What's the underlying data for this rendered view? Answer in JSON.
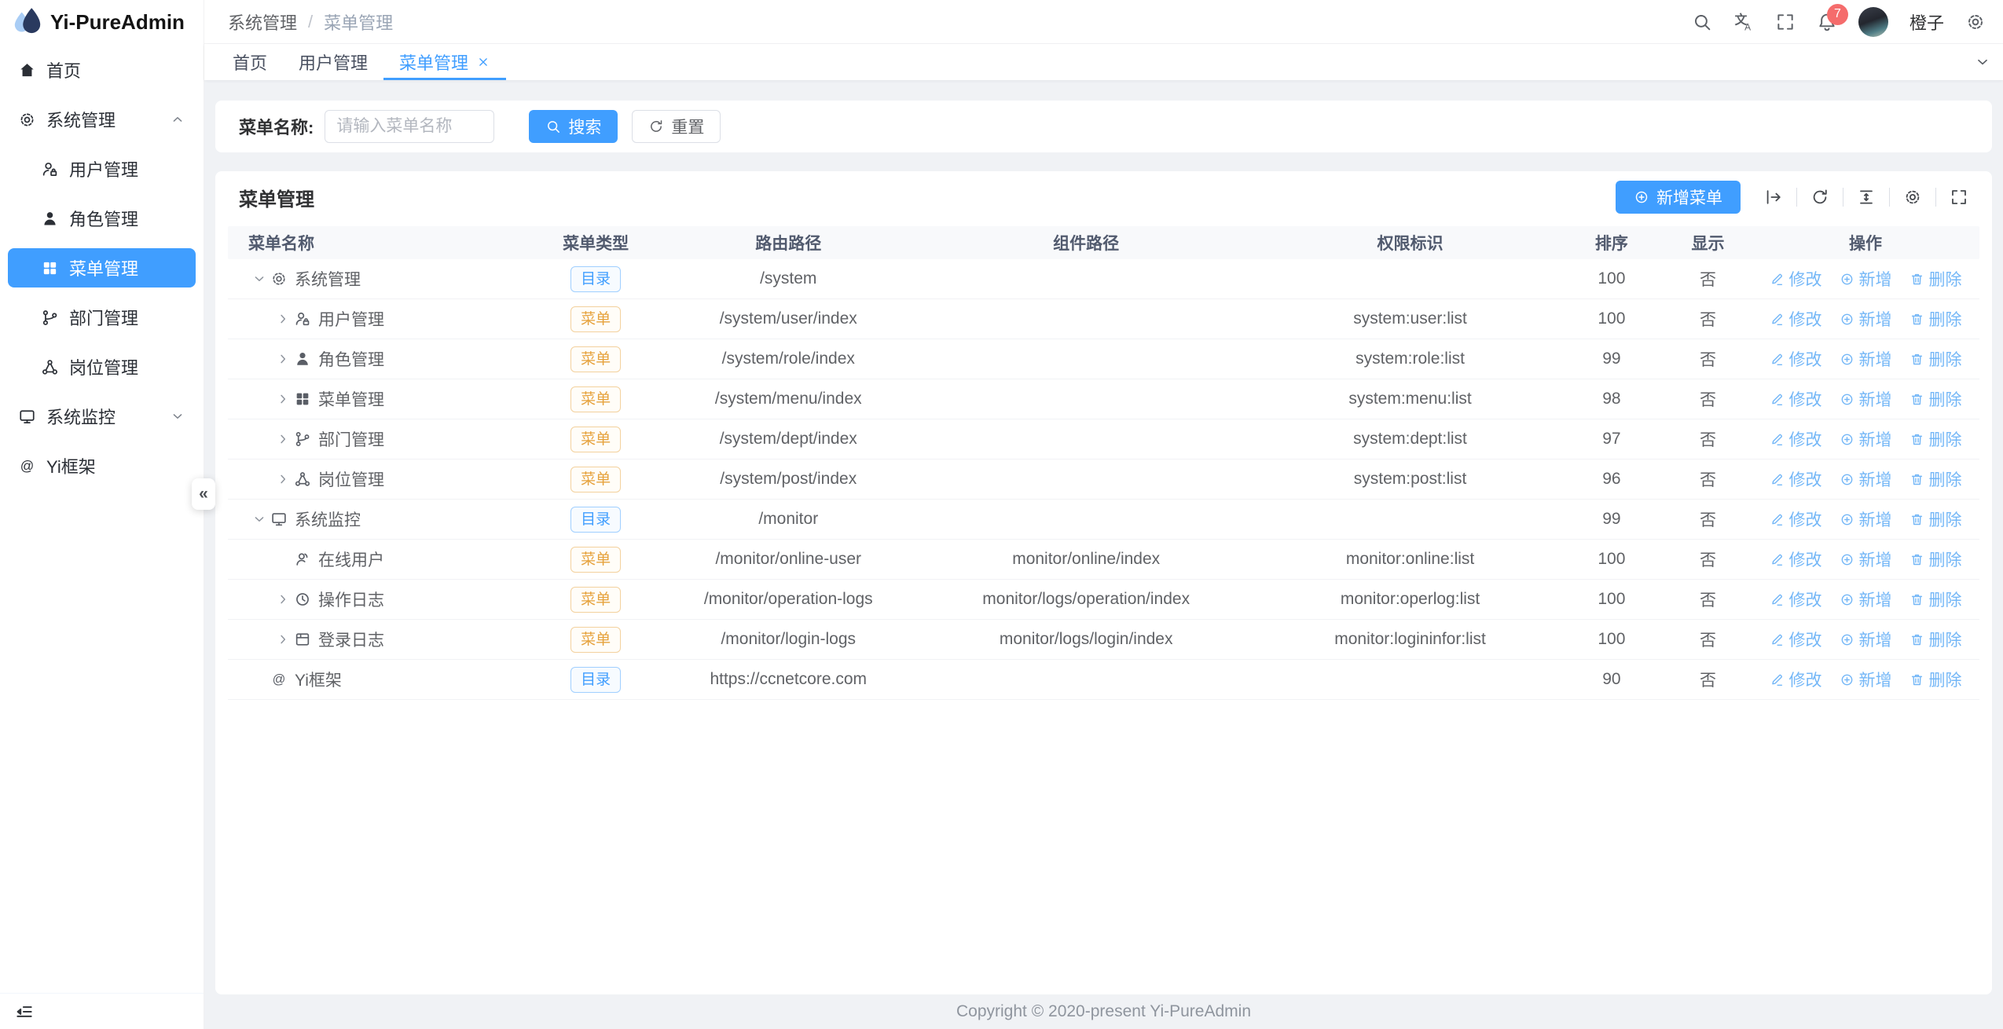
{
  "app": {
    "title": "Yi-PureAdmin"
  },
  "colors": {
    "primary": "#409eff",
    "warning": "#e6a23c",
    "badge_red": "#f56c6c",
    "link_blue": "#74b7f7",
    "sidebar_active_bg": "#409eff"
  },
  "sidebar": {
    "items": [
      {
        "label": "首页",
        "icon": "home",
        "level": 1
      },
      {
        "label": "系统管理",
        "icon": "gear",
        "level": 1,
        "expand": "up"
      },
      {
        "label": "用户管理",
        "icon": "user",
        "level": 2
      },
      {
        "label": "角色管理",
        "icon": "role",
        "level": 2
      },
      {
        "label": "菜单管理",
        "icon": "grid",
        "level": 2,
        "active": true
      },
      {
        "label": "部门管理",
        "icon": "dept",
        "level": 2
      },
      {
        "label": "岗位管理",
        "icon": "post",
        "level": 2
      },
      {
        "label": "系统监控",
        "icon": "monitor",
        "level": 1,
        "expand": "down"
      },
      {
        "label": "Yi框架",
        "icon": "at",
        "level": 1
      }
    ],
    "collapse_glyph": "«"
  },
  "header": {
    "breadcrumb": [
      "系统管理",
      "菜单管理"
    ],
    "breadcrumb_separator": "/",
    "username": "橙子",
    "badge_count": "7"
  },
  "tabs": [
    {
      "label": "首页",
      "active": false
    },
    {
      "label": "用户管理",
      "active": false
    },
    {
      "label": "菜单管理",
      "active": true,
      "closable": true
    }
  ],
  "search": {
    "label": "菜单名称:",
    "placeholder": "请输入菜单名称",
    "search_btn": "搜索",
    "reset_btn": "重置"
  },
  "card": {
    "title": "菜单管理",
    "add_btn": "新增菜单",
    "toolbar_icons": [
      "expand",
      "refresh",
      "density",
      "settings",
      "fullscreen"
    ]
  },
  "table": {
    "columns": [
      "菜单名称",
      "菜单类型",
      "路由路径",
      "组件路径",
      "权限标识",
      "排序",
      "显示",
      "操作"
    ],
    "type_labels": {
      "dir": "目录",
      "menu": "菜单"
    },
    "actions": [
      {
        "icon": "edit",
        "label": "修改"
      },
      {
        "icon": "plus",
        "label": "新增"
      },
      {
        "icon": "trash",
        "label": "删除"
      }
    ],
    "rows": [
      {
        "name": "系统管理",
        "icon": "gear",
        "level": 1,
        "arrow": "down",
        "type": "dir",
        "route": "/system",
        "component": "",
        "perm": "",
        "sort": "100",
        "show": "否"
      },
      {
        "name": "用户管理",
        "icon": "user",
        "level": 2,
        "arrow": "right",
        "type": "menu",
        "route": "/system/user/index",
        "component": "",
        "perm": "system:user:list",
        "sort": "100",
        "show": "否"
      },
      {
        "name": "角色管理",
        "icon": "role",
        "level": 2,
        "arrow": "right",
        "type": "menu",
        "route": "/system/role/index",
        "component": "",
        "perm": "system:role:list",
        "sort": "99",
        "show": "否"
      },
      {
        "name": "菜单管理",
        "icon": "grid",
        "level": 2,
        "arrow": "right",
        "type": "menu",
        "route": "/system/menu/index",
        "component": "",
        "perm": "system:menu:list",
        "sort": "98",
        "show": "否"
      },
      {
        "name": "部门管理",
        "icon": "dept",
        "level": 2,
        "arrow": "right",
        "type": "menu",
        "route": "/system/dept/index",
        "component": "",
        "perm": "system:dept:list",
        "sort": "97",
        "show": "否"
      },
      {
        "name": "岗位管理",
        "icon": "post",
        "level": 2,
        "arrow": "right",
        "type": "menu",
        "route": "/system/post/index",
        "component": "",
        "perm": "system:post:list",
        "sort": "96",
        "show": "否"
      },
      {
        "name": "系统监控",
        "icon": "monitor",
        "level": 1,
        "arrow": "down",
        "type": "dir",
        "route": "/monitor",
        "component": "",
        "perm": "",
        "sort": "99",
        "show": "否"
      },
      {
        "name": "在线用户",
        "icon": "online",
        "level": 2,
        "arrow": "none",
        "type": "menu",
        "route": "/monitor/online-user",
        "component": "monitor/online/index",
        "perm": "monitor:online:list",
        "sort": "100",
        "show": "否"
      },
      {
        "name": "操作日志",
        "icon": "clock",
        "level": 2,
        "arrow": "right",
        "type": "menu",
        "route": "/monitor/operation-logs",
        "component": "monitor/logs/operation/index",
        "perm": "monitor:operlog:list",
        "sort": "100",
        "show": "否"
      },
      {
        "name": "登录日志",
        "icon": "loginlog",
        "level": 2,
        "arrow": "right",
        "type": "menu",
        "route": "/monitor/login-logs",
        "component": "monitor/logs/login/index",
        "perm": "monitor:logininfor:list",
        "sort": "100",
        "show": "否"
      },
      {
        "name": "Yi框架",
        "icon": "at",
        "level": 1,
        "arrow": "none",
        "type": "dir",
        "route": "https://ccnetcore.com",
        "component": "",
        "perm": "",
        "sort": "90",
        "show": "否"
      }
    ]
  },
  "footer": {
    "copyright": "Copyright © 2020-present Yi-PureAdmin"
  }
}
